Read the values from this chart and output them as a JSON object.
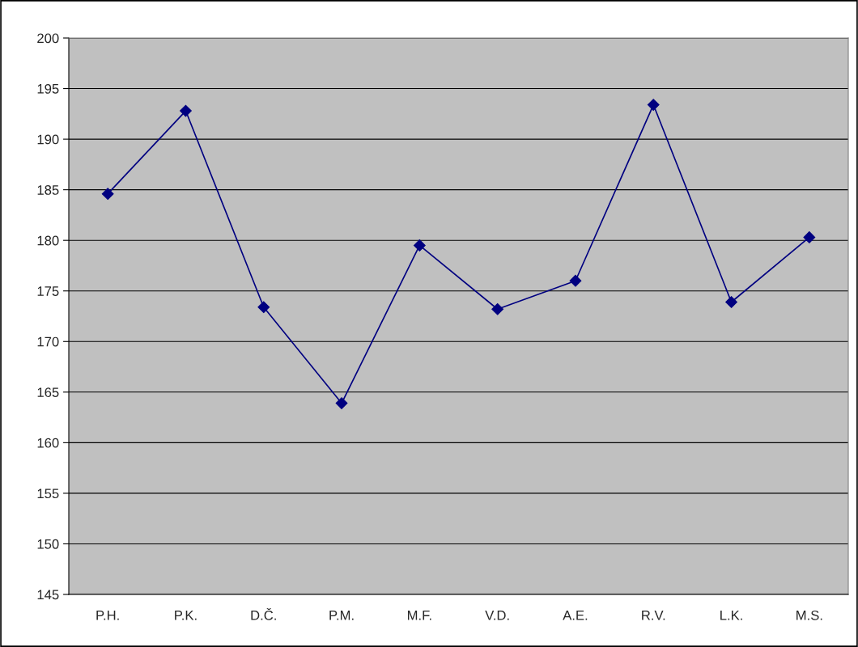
{
  "chart_data": {
    "type": "line",
    "categories": [
      "P.H.",
      "P.K.",
      "D.Č.",
      "P.M.",
      "M.F.",
      "V.D.",
      "A.E.",
      "R.V.",
      "L.K.",
      "M.S."
    ],
    "series": [
      {
        "color": "#000080",
        "values": [
          184.6,
          192.8,
          173.4,
          163.9,
          179.5,
          173.2,
          176.0,
          193.4,
          173.9,
          180.3
        ]
      }
    ],
    "ylim": [
      145,
      200
    ],
    "yticks": [
      145,
      150,
      155,
      160,
      165,
      170,
      175,
      180,
      185,
      190,
      195,
      200
    ],
    "grid": "y",
    "marker": "diamond",
    "line_style": "solid",
    "legend": false
  }
}
